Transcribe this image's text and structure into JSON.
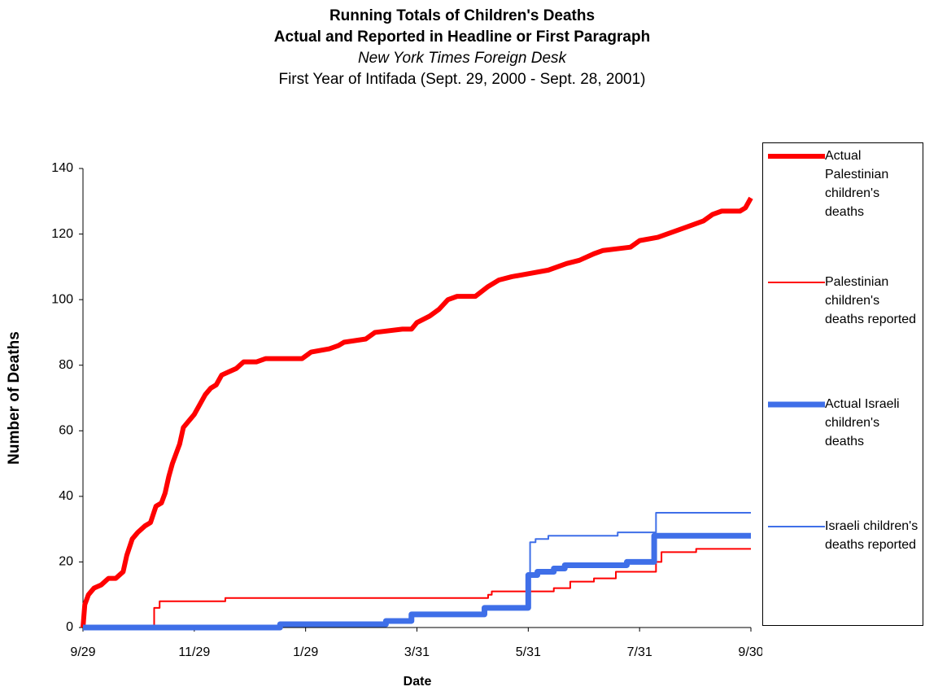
{
  "chart_data": {
    "type": "line",
    "title": "Running Totals of Children's Deaths",
    "subtitle": "Actual and Reported in Headline or First Paragraph",
    "source": "New York Times Foreign Desk",
    "period": "First Year of Intifada (Sept. 29, 2000 - Sept. 28, 2001)",
    "xlabel": "Date",
    "ylabel": "Number of Deaths",
    "xlim": [
      0,
      366
    ],
    "xticks": [
      {
        "value": 0,
        "label": "9/29"
      },
      {
        "value": 61,
        "label": "11/29"
      },
      {
        "value": 122,
        "label": "1/29"
      },
      {
        "value": 183,
        "label": "3/31"
      },
      {
        "value": 244,
        "label": "5/31"
      },
      {
        "value": 305,
        "label": "7/31"
      },
      {
        "value": 366,
        "label": "9/30"
      }
    ],
    "ylim": [
      0,
      140
    ],
    "yticks": [
      0,
      20,
      40,
      60,
      80,
      100,
      120,
      140
    ],
    "grid": false,
    "legend": "right",
    "series": [
      {
        "name": "Actual Palestinian children's deaths",
        "color": "#ff0000",
        "width": 6,
        "step": false,
        "x": [
          0,
          1,
          3,
          6,
          10,
          14,
          18,
          20,
          22,
          24,
          27,
          30,
          34,
          37,
          40,
          43,
          45,
          47,
          49,
          51,
          53,
          55,
          58,
          61,
          64,
          67,
          70,
          73,
          76,
          80,
          84,
          88,
          95,
          100,
          120,
          125,
          135,
          140,
          143,
          155,
          160,
          175,
          180,
          183,
          190,
          195,
          200,
          205,
          215,
          222,
          228,
          235,
          245,
          255,
          265,
          272,
          280,
          285,
          300,
          305,
          315,
          320,
          330,
          340,
          345,
          350,
          360,
          363,
          366
        ],
        "values": [
          0,
          7,
          10,
          12,
          13,
          15,
          15,
          16,
          17,
          22,
          27,
          29,
          31,
          32,
          37,
          38,
          41,
          46,
          50,
          53,
          56,
          61,
          63,
          65,
          68,
          71,
          73,
          74,
          77,
          78,
          79,
          81,
          81,
          82,
          82,
          84,
          85,
          86,
          87,
          88,
          90,
          91,
          91,
          93,
          95,
          97,
          100,
          101,
          101,
          104,
          106,
          107,
          108,
          109,
          111,
          112,
          114,
          115,
          116,
          118,
          119,
          120,
          122,
          124,
          126,
          127,
          127,
          128,
          131
        ]
      },
      {
        "name": "Palestinian children's deaths reported",
        "color": "#ff0000",
        "width": 2,
        "step": true,
        "x": [
          0,
          38,
          39,
          42,
          78,
          222,
          224,
          251,
          258,
          267,
          280,
          292,
          314,
          317,
          336,
          366
        ],
        "values": [
          0,
          0,
          6,
          8,
          9,
          10,
          11,
          11,
          12,
          14,
          15,
          17,
          20,
          23,
          24,
          24
        ]
      },
      {
        "name": "Actual Israeli children's deaths",
        "color": "#3f6fe8",
        "width": 7,
        "step": true,
        "x": [
          0,
          108,
          166,
          180,
          220,
          244,
          249,
          258,
          264,
          298,
          313,
          366
        ],
        "values": [
          0,
          1,
          2,
          4,
          6,
          16,
          17,
          18,
          19,
          20,
          28,
          28
        ]
      },
      {
        "name": "Israeli children's deaths reported",
        "color": "#3f6fe8",
        "width": 2,
        "step": true,
        "x": [
          0,
          108,
          166,
          180,
          220,
          245,
          248,
          255,
          293,
          314,
          366
        ],
        "values": [
          0,
          1,
          2,
          4,
          6,
          26,
          27,
          28,
          29,
          35,
          35
        ]
      }
    ]
  }
}
